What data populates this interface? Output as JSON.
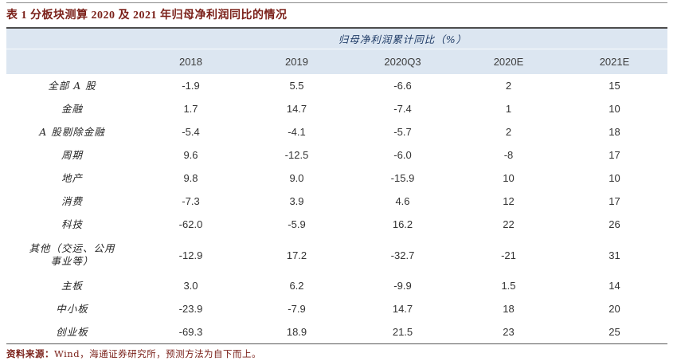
{
  "title": "表 1 分板块测算 2020 及 2021 年归母净利润同比的情况",
  "table": {
    "group_header": "归母净利润累计同比（%）",
    "columns": [
      "2018",
      "2019",
      "2020Q3",
      "2020E",
      "2021E"
    ],
    "rows": [
      {
        "label": "全部 A 股",
        "values": [
          "-1.9",
          "5.5",
          "-6.6",
          "2",
          "15"
        ]
      },
      {
        "label": "金融",
        "values": [
          "1.7",
          "14.7",
          "-7.4",
          "1",
          "10"
        ]
      },
      {
        "label": "A 股剔除金融",
        "values": [
          "-5.4",
          "-4.1",
          "-5.7",
          "2",
          "18"
        ]
      },
      {
        "label": "周期",
        "values": [
          "9.6",
          "-12.5",
          "-6.0",
          "-8",
          "17"
        ]
      },
      {
        "label": "地产",
        "values": [
          "9.8",
          "9.0",
          "-15.9",
          "10",
          "10"
        ]
      },
      {
        "label": "消费",
        "values": [
          "-7.3",
          "3.9",
          "4.6",
          "12",
          "17"
        ]
      },
      {
        "label": "科技",
        "values": [
          "-62.0",
          "-5.9",
          "16.2",
          "22",
          "26"
        ]
      },
      {
        "label": "其他（交运、公用事业等）",
        "values": [
          "-12.9",
          "17.2",
          "-32.7",
          "-21",
          "31"
        ]
      },
      {
        "label": "主板",
        "values": [
          "3.0",
          "6.2",
          "-9.9",
          "1.5",
          "14"
        ]
      },
      {
        "label": "中小板",
        "values": [
          "-23.9",
          "-7.9",
          "14.7",
          "18",
          "20"
        ]
      },
      {
        "label": "创业板",
        "values": [
          "-69.3",
          "18.9",
          "21.5",
          "23",
          "25"
        ]
      }
    ]
  },
  "footer": {
    "source_label": "资料来源：",
    "source_text": "Wind，海通证券研究所，预测方法为自下而上。"
  },
  "colors": {
    "header_bg": "#dce6f1",
    "title_text": "#7b211a",
    "group_header_text": "#1f3b66",
    "body_text": "#333333",
    "rule_dark": "#4d4d4d"
  }
}
